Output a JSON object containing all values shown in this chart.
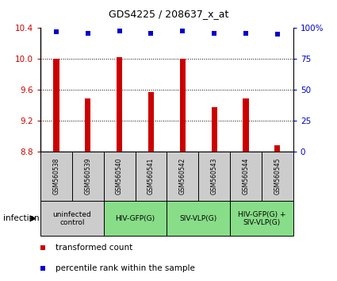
{
  "title": "GDS4225 / 208637_x_at",
  "samples": [
    "GSM560538",
    "GSM560539",
    "GSM560540",
    "GSM560541",
    "GSM560542",
    "GSM560543",
    "GSM560544",
    "GSM560545"
  ],
  "bar_values": [
    10.0,
    9.49,
    10.02,
    9.57,
    10.0,
    9.38,
    9.49,
    8.88
  ],
  "percentile_values": [
    97,
    96,
    98,
    96,
    98,
    96,
    96,
    95
  ],
  "ylim": [
    8.8,
    10.4
  ],
  "yticks": [
    8.8,
    9.2,
    9.6,
    10.0,
    10.4
  ],
  "right_yticks": [
    0,
    25,
    50,
    75,
    100
  ],
  "right_ylim": [
    0,
    100
  ],
  "bar_color": "#cc0000",
  "dot_color": "#0000cc",
  "bar_width": 0.18,
  "group_spans": [
    {
      "label": "uninfected\ncontrol",
      "start": 0,
      "end": 1,
      "color": "#cccccc"
    },
    {
      "label": "HIV-GFP(G)",
      "start": 2,
      "end": 3,
      "color": "#88dd88"
    },
    {
      "label": "SIV-VLP(G)",
      "start": 4,
      "end": 5,
      "color": "#88dd88"
    },
    {
      "label": "HIV-GFP(G) +\nSIV-VLP(G)",
      "start": 6,
      "end": 7,
      "color": "#88dd88"
    }
  ],
  "infection_label": "infection",
  "legend_red_label": "transformed count",
  "legend_blue_label": "percentile rank within the sample",
  "bar_color_hex": "#cc0000",
  "dot_color_hex": "#0000cc",
  "left_tick_color": "#cc0000",
  "right_tick_color": "#0000cc",
  "sample_box_color": "#cccccc",
  "title_fontsize": 9,
  "axis_fontsize": 7.5,
  "label_fontsize": 5.5,
  "group_fontsize": 6.5,
  "legend_fontsize": 7.5
}
